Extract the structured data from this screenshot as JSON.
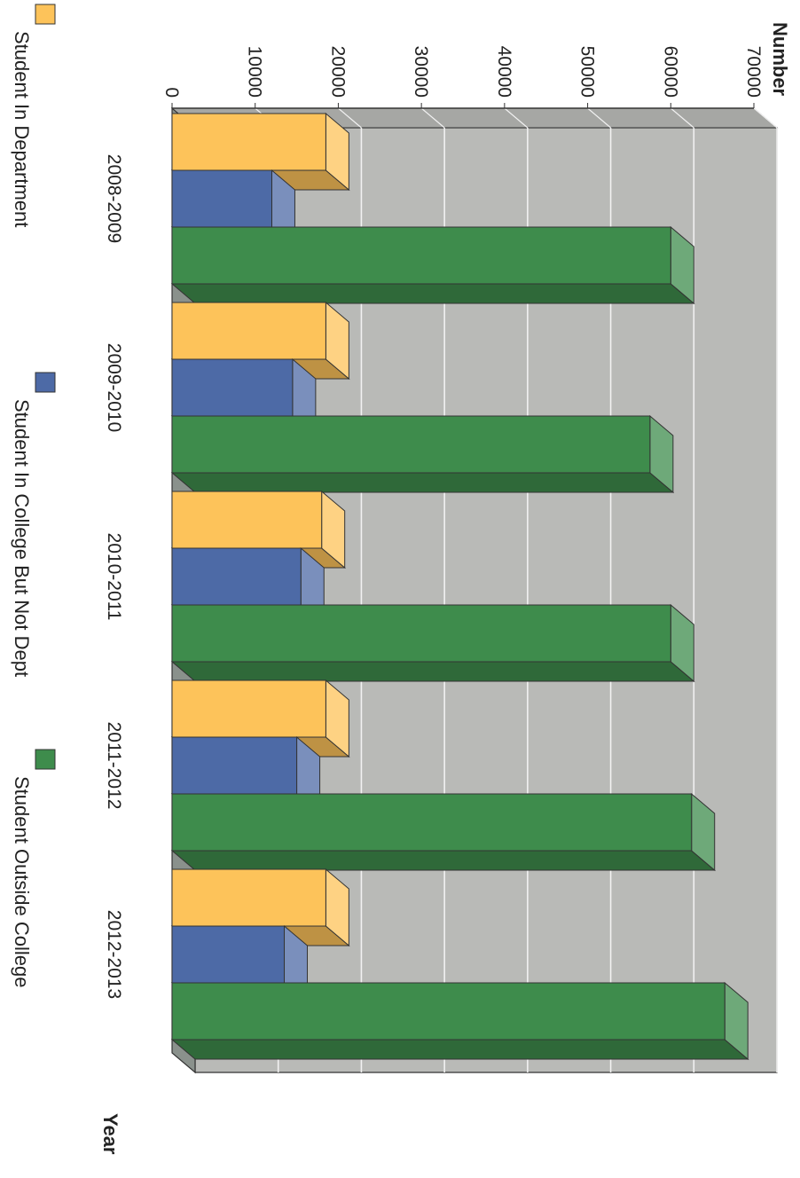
{
  "chart_data": {
    "type": "bar",
    "orientation": "rendered rotated 90 degrees clockwise",
    "three_d": true,
    "ylabel": "Number",
    "xlabel": "Year",
    "ylim": [
      0,
      70000
    ],
    "yticks": [
      0,
      10000,
      20000,
      30000,
      40000,
      50000,
      60000,
      70000
    ],
    "categories": [
      "2008-2009",
      "2009-2010",
      "2010-2011",
      "2011-2012",
      "2012-2013"
    ],
    "series": [
      {
        "name": "Student In Department",
        "color": "#FDC35A",
        "values": [
          18500,
          18500,
          18000,
          18500,
          18500
        ]
      },
      {
        "name": "Student In College But Not Dept",
        "color": "#4D6AA6",
        "values": [
          12000,
          14500,
          15500,
          15000,
          13500
        ]
      },
      {
        "name": "Student Outside College",
        "color": "#3E8C4C",
        "values": [
          60000,
          57500,
          60000,
          62500,
          66500
        ]
      }
    ],
    "grid": true,
    "legend_position": "bottom"
  }
}
